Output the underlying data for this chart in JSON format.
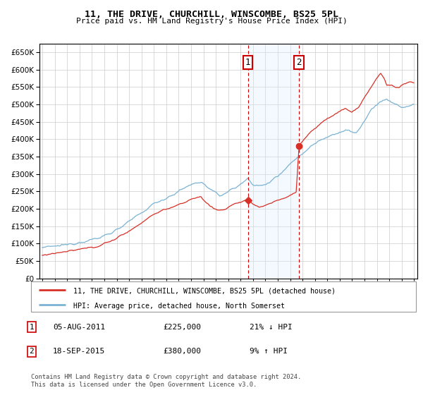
{
  "title": "11, THE DRIVE, CHURCHILL, WINSCOMBE, BS25 5PL",
  "subtitle": "Price paid vs. HM Land Registry's House Price Index (HPI)",
  "legend_line1": "11, THE DRIVE, CHURCHILL, WINSCOMBE, BS25 5PL (detached house)",
  "legend_line2": "HPI: Average price, detached house, North Somerset",
  "annotation1_date": "05-AUG-2011",
  "annotation1_price": "£225,000",
  "annotation1_hpi": "21% ↓ HPI",
  "annotation2_date": "18-SEP-2015",
  "annotation2_price": "£380,000",
  "annotation2_hpi": "9% ↑ HPI",
  "footer": "Contains HM Land Registry data © Crown copyright and database right 2024.\nThis data is licensed under the Open Government Licence v3.0.",
  "hpi_color": "#7ab3d4",
  "price_color": "#d73027",
  "annotation_box_color": "#cc0000",
  "shade_color": "#ddeeff",
  "vline_color": "#cc0000",
  "ylim": [
    0,
    675000
  ],
  "yticks": [
    0,
    50000,
    100000,
    150000,
    200000,
    250000,
    300000,
    350000,
    400000,
    450000,
    500000,
    550000,
    600000,
    650000
  ],
  "sale1_x": 2011.583,
  "sale1_y": 225000,
  "sale2_x": 2015.708,
  "sale2_y": 380000,
  "xmin": 1995.0,
  "xmax": 2025.0
}
